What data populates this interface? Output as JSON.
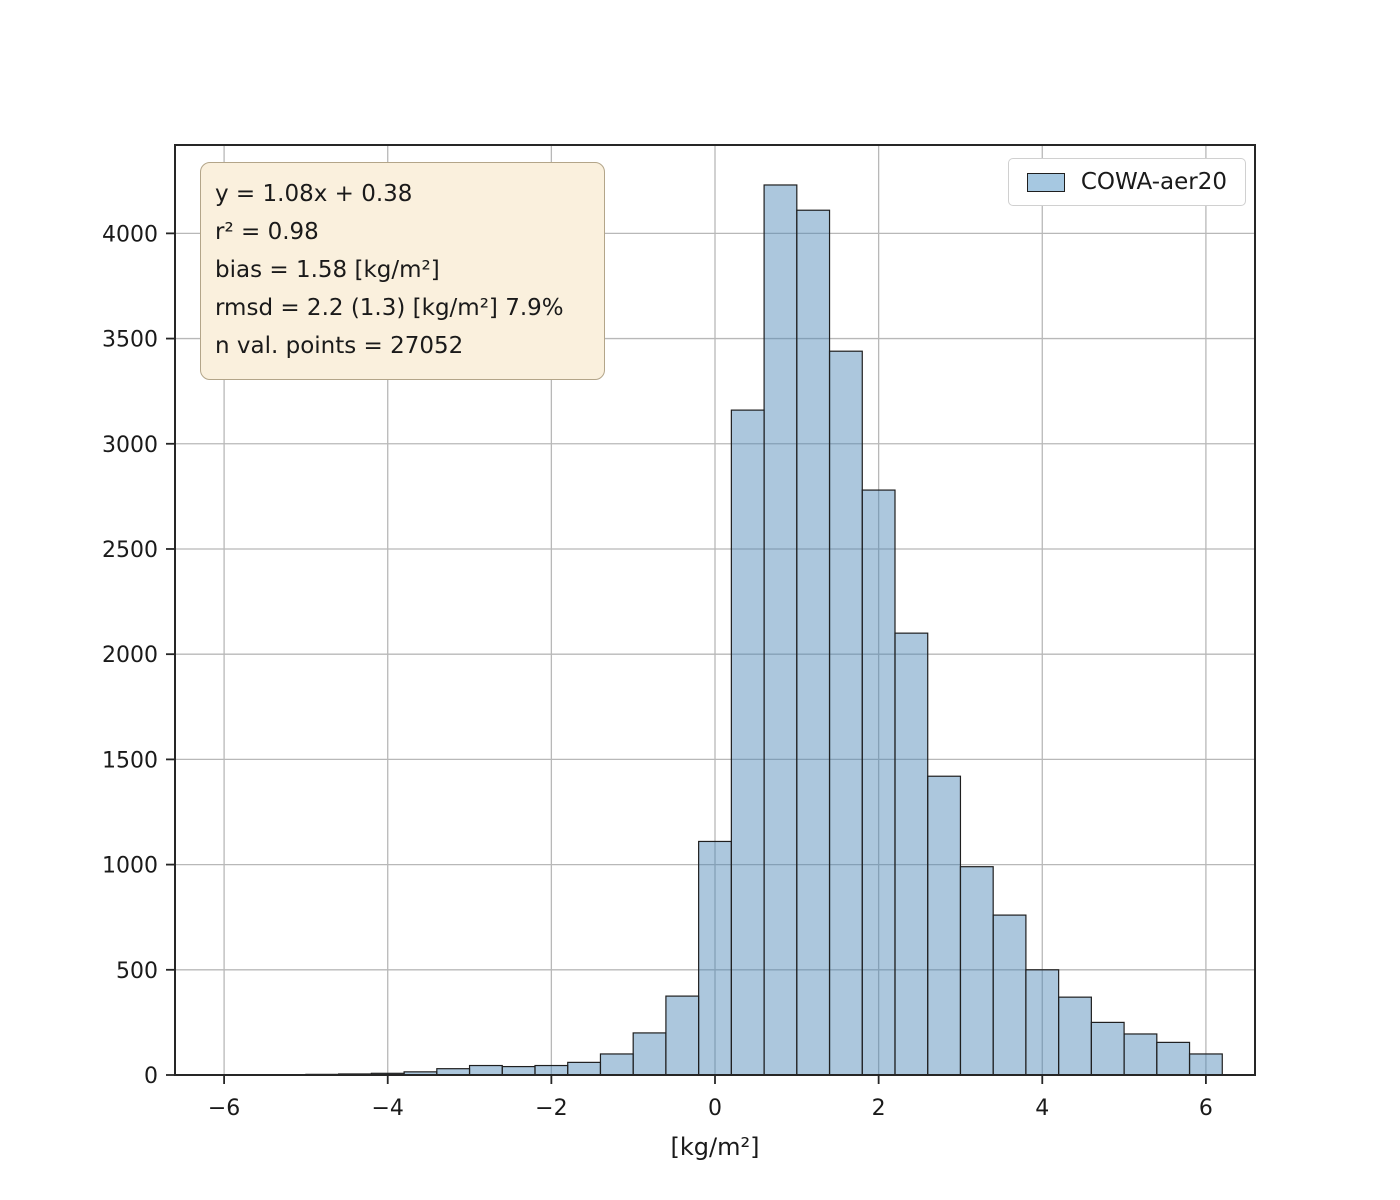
{
  "chart_data": {
    "type": "bar",
    "subtype": "histogram",
    "title": "",
    "xlabel": "[kg/m²]",
    "ylabel": "",
    "grid": true,
    "legend": {
      "label": "COWA-aer20",
      "position": "upper right"
    },
    "annotation": {
      "lines": [
        "y = 1.08x + 0.38",
        "r² = 0.98",
        "bias = 1.58 [kg/m²]",
        "rmsd = 2.2 (1.3) [kg/m²] 7.9%",
        "n val. points = 27052"
      ]
    },
    "xlim": [
      -6.6,
      6.6
    ],
    "ylim": [
      0,
      4420
    ],
    "x_ticks": {
      "values": [
        -6,
        -4,
        -2,
        0,
        2,
        4,
        6
      ],
      "labels": [
        "−6",
        "−4",
        "−2",
        "0",
        "2",
        "4",
        "6"
      ]
    },
    "y_ticks": {
      "values": [
        0,
        500,
        1000,
        1500,
        2000,
        2500,
        3000,
        3500,
        4000
      ],
      "labels": [
        "0",
        "500",
        "1000",
        "1500",
        "2000",
        "2500",
        "3000",
        "3500",
        "4000"
      ]
    },
    "bin_edges": [
      -5.0,
      -4.6,
      -4.2,
      -3.8,
      -3.4,
      -3.0,
      -2.6,
      -2.2,
      -1.8,
      -1.4,
      -1.0,
      -0.6,
      -0.2,
      0.2,
      0.6,
      1.0,
      1.4,
      1.8,
      2.2,
      2.6,
      3.0,
      3.4,
      3.8,
      4.2,
      4.6,
      5.0,
      5.4,
      5.8,
      6.2
    ],
    "counts": [
      3,
      5,
      8,
      15,
      30,
      45,
      40,
      45,
      60,
      100,
      200,
      375,
      1110,
      3160,
      4230,
      4110,
      3440,
      2780,
      2100,
      1420,
      990,
      760,
      500,
      370,
      250,
      195,
      155,
      100
    ],
    "colors": {
      "bar_fill": "#4682B4",
      "bar_fill_opacity": "0.45",
      "bar_edge": "#1f1f1f",
      "legend_patch_fill": "#a6c8e1",
      "grid": "#b8b8b8",
      "axis": "#262626",
      "text": "#1a1a1a",
      "stats_bg": "#faf0dd",
      "stats_border": "#b3a589",
      "legend_border": "#d0d0d0"
    }
  }
}
